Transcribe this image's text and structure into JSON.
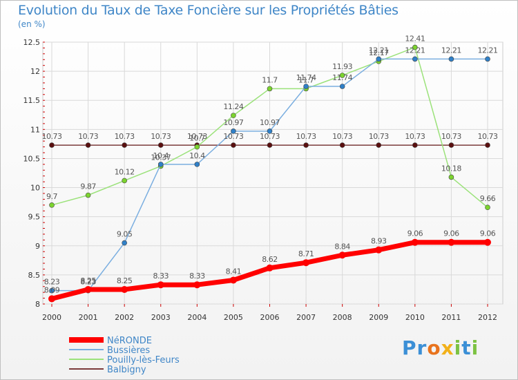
{
  "chart_data": {
    "type": "line",
    "title": "Evolution du Taux de Taxe Foncière sur les Propriétés Bâties",
    "subtitle": "(en %)",
    "x": [
      "2000",
      "2001",
      "2002",
      "2003",
      "2004",
      "2005",
      "2006",
      "2007",
      "2008",
      "2009",
      "2010",
      "2011",
      "2012"
    ],
    "ylim": [
      8,
      12.5
    ],
    "yticks": [
      "8",
      "8.5",
      "9",
      "9.5",
      "10",
      "10.5",
      "11",
      "11.5",
      "12",
      "12.5"
    ],
    "grid": true,
    "legend_position": "bottom-left",
    "series": [
      {
        "name": "NéRONDE",
        "color": "#ff0000",
        "width": 7,
        "marker": "#ff0000",
        "values": [
          8.09,
          8.25,
          8.25,
          8.33,
          8.33,
          8.41,
          8.62,
          8.71,
          8.84,
          8.93,
          9.06,
          9.06,
          9.06
        ],
        "labels": [
          "8.09",
          "8.25",
          "8.25",
          "8.33",
          "8.33",
          "8.41",
          "8.62",
          "8.71",
          "8.84",
          "8.93",
          "9.06",
          "9.06",
          "9.06"
        ]
      },
      {
        "name": "Bussières",
        "color": "#7aaee0",
        "width": 1.5,
        "marker": "#2f80c8",
        "values": [
          8.23,
          8.23,
          9.05,
          10.4,
          10.4,
          10.97,
          10.97,
          11.74,
          11.74,
          12.21,
          12.21,
          12.21,
          12.21
        ],
        "labels": [
          "8.23",
          "8.23",
          "9.05",
          "10.4",
          "10.4",
          "10.97",
          "10.97",
          "11.74",
          "11.74",
          "12.21",
          "12.21",
          "12.21",
          "12.21"
        ]
      },
      {
        "name": "Pouilly-lès-Feurs",
        "color": "#9be27a",
        "width": 1.5,
        "marker": "#7cd42e",
        "values": [
          9.7,
          9.87,
          10.12,
          10.37,
          10.7,
          11.24,
          11.7,
          11.7,
          11.93,
          12.17,
          12.41,
          10.18,
          9.66
        ],
        "labels": [
          "9.7",
          "9.87",
          "10.12",
          "10.37",
          "10.7",
          "11.24",
          "11.7",
          "11.7",
          "11.93",
          "12.17",
          "12.41",
          "10.18",
          "9.66"
        ]
      },
      {
        "name": "Balbigny",
        "color": "#7a3a3a",
        "width": 1.5,
        "marker": "#5a0f0f",
        "values": [
          10.73,
          10.73,
          10.73,
          10.73,
          10.73,
          10.73,
          10.73,
          10.73,
          10.73,
          10.73,
          10.73,
          10.73,
          10.73
        ],
        "labels": [
          "10.73",
          "10.73",
          "10.73",
          "10.73",
          "10.73",
          "10.73",
          "10.73",
          "10.73",
          "10.73",
          "10.73",
          "10.73",
          "10.73",
          "10.73"
        ]
      }
    ]
  },
  "logo_text": "Proxiti"
}
